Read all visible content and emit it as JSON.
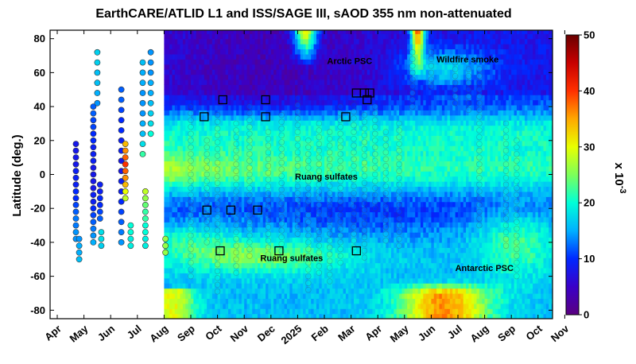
{
  "chart_data": {
    "type": "heatmap",
    "title": "EarthCARE/ATLID L1 and ISS/SAGE III, sAOD 355 nm non-attenuated",
    "ylabel": "Latitude (deg.)",
    "ylim": [
      -85,
      85
    ],
    "yticks": [
      80,
      60,
      40,
      20,
      0,
      -20,
      -40,
      -60,
      -80
    ],
    "x_ticks": [
      {
        "label": "Apr",
        "highlight": false
      },
      {
        "label": "May",
        "highlight": false
      },
      {
        "label": "Jun",
        "highlight": false
      },
      {
        "label": "Jul",
        "highlight": false
      },
      {
        "label": "Aug",
        "highlight": false
      },
      {
        "label": "Sep",
        "highlight": false
      },
      {
        "label": "Oct",
        "highlight": false
      },
      {
        "label": "Nov",
        "highlight": false
      },
      {
        "label": "Dec",
        "highlight": false
      },
      {
        "label": "2025",
        "highlight": true
      },
      {
        "label": "Feb",
        "highlight": false
      },
      {
        "label": "Mar",
        "highlight": false
      },
      {
        "label": "Apr",
        "highlight": false
      },
      {
        "label": "May",
        "highlight": false
      },
      {
        "label": "Jun",
        "highlight": false
      },
      {
        "label": "Jul",
        "highlight": false
      },
      {
        "label": "Aug",
        "highlight": false
      },
      {
        "label": "Sep",
        "highlight": false
      },
      {
        "label": "Oct",
        "highlight": false
      },
      {
        "label": "Nov",
        "highlight": false
      }
    ],
    "colorbar": {
      "min": 0,
      "max": 50,
      "ticks": [
        50,
        40,
        30,
        20,
        10,
        0
      ],
      "label": "x 10",
      "label_exp": "-3",
      "colormap": "jet"
    },
    "annotations": [
      {
        "text": "Arctic PSC",
        "month": 10.1,
        "lat": 65
      },
      {
        "text": "Wildfire smoke",
        "month": 14.2,
        "lat": 66
      },
      {
        "text": "Ruang sulfates",
        "month": 8.9,
        "lat": -3
      },
      {
        "text": "Ruang sulfates",
        "month": 7.6,
        "lat": -51
      },
      {
        "text": "Antarctic PSC",
        "month": 14.9,
        "lat": -57
      }
    ],
    "highlight_squares": [
      {
        "month": 5.5,
        "lat": 34
      },
      {
        "month": 6.2,
        "lat": 44
      },
      {
        "month": 7.8,
        "lat": 44
      },
      {
        "month": 7.8,
        "lat": 34
      },
      {
        "month": 10.8,
        "lat": 34
      },
      {
        "month": 11.2,
        "lat": 48
      },
      {
        "month": 11.5,
        "lat": 48
      },
      {
        "month": 11.7,
        "lat": 48
      },
      {
        "month": 11.6,
        "lat": 44
      },
      {
        "month": 5.6,
        "lat": -21
      },
      {
        "month": 6.5,
        "lat": -21
      },
      {
        "month": 7.5,
        "lat": -21
      },
      {
        "month": 6.1,
        "lat": -45
      },
      {
        "month": 8.3,
        "lat": -45
      },
      {
        "month": 11.2,
        "lat": -45
      }
    ],
    "sage_tracks_period1": [
      {
        "lats": [
          18,
          14,
          10,
          6,
          2,
          -2,
          -6,
          -10,
          -14,
          -18,
          -22,
          -26,
          -30,
          -34,
          -38
        ],
        "vals": [
          8,
          8,
          8,
          8,
          9,
          9,
          9,
          10,
          10,
          11,
          12,
          13,
          13,
          14,
          14
        ]
      },
      {
        "lats": [
          -38,
          -42,
          -46,
          -50
        ],
        "vals": [
          14,
          15,
          15,
          16
        ]
      },
      {
        "lats": [
          40,
          36,
          32,
          28,
          24,
          20,
          16,
          12,
          8,
          4,
          0,
          -4,
          -8,
          -12,
          -16,
          -20,
          -24,
          -28,
          -32,
          -36,
          -40
        ],
        "vals": [
          12,
          12,
          11,
          11,
          10,
          10,
          9,
          9,
          9,
          8,
          8,
          8,
          8,
          9,
          9,
          10,
          11,
          12,
          13,
          14,
          15
        ]
      },
      {
        "lats": [
          72,
          66,
          60,
          54,
          48,
          42
        ],
        "vals": [
          17,
          17,
          16,
          16,
          15,
          14
        ]
      },
      {
        "lats": [
          -6,
          -10,
          -14,
          -18,
          -22,
          -26
        ],
        "vals": [
          9,
          9,
          10,
          10,
          11,
          12
        ]
      },
      {
        "lats": [
          -34,
          -38,
          -42
        ],
        "vals": [
          18,
          18,
          17
        ]
      },
      {
        "lats": [
          50,
          44,
          38,
          32,
          26,
          20,
          14,
          8,
          2,
          -4,
          -10,
          -16,
          -22,
          -28,
          -34,
          -40
        ],
        "vals": [
          12,
          12,
          11,
          10,
          10,
          9,
          9,
          8,
          8,
          9,
          9,
          10,
          11,
          12,
          13,
          14
        ]
      },
      {
        "lats": [
          18,
          14,
          10,
          6,
          2,
          -2,
          -6,
          -10,
          -14
        ],
        "vals": [
          34,
          36,
          38,
          40,
          38,
          36,
          34,
          30,
          28
        ]
      },
      {
        "lats": [
          -30,
          -34,
          -38,
          -42
        ],
        "vals": [
          20,
          20,
          19,
          19
        ]
      },
      {
        "lats": [
          66,
          60,
          54,
          48,
          42,
          36,
          30,
          24,
          18,
          12
        ],
        "vals": [
          16,
          15,
          15,
          14,
          14,
          14,
          15,
          16,
          18,
          22
        ]
      },
      {
        "lats": [
          -10,
          -14,
          -18,
          -22,
          -26,
          -30,
          -34,
          -38,
          -42
        ],
        "vals": [
          28,
          26,
          24,
          22,
          22,
          20,
          20,
          19,
          19
        ]
      },
      {
        "lats": [
          72,
          66,
          60,
          54,
          48,
          42,
          36,
          30,
          24
        ],
        "vals": [
          14,
          14,
          14,
          15,
          15,
          16,
          17,
          18,
          20
        ]
      },
      {
        "lats": [
          -38,
          -42,
          -46
        ],
        "vals": [
          26,
          26,
          26
        ]
      }
    ]
  }
}
